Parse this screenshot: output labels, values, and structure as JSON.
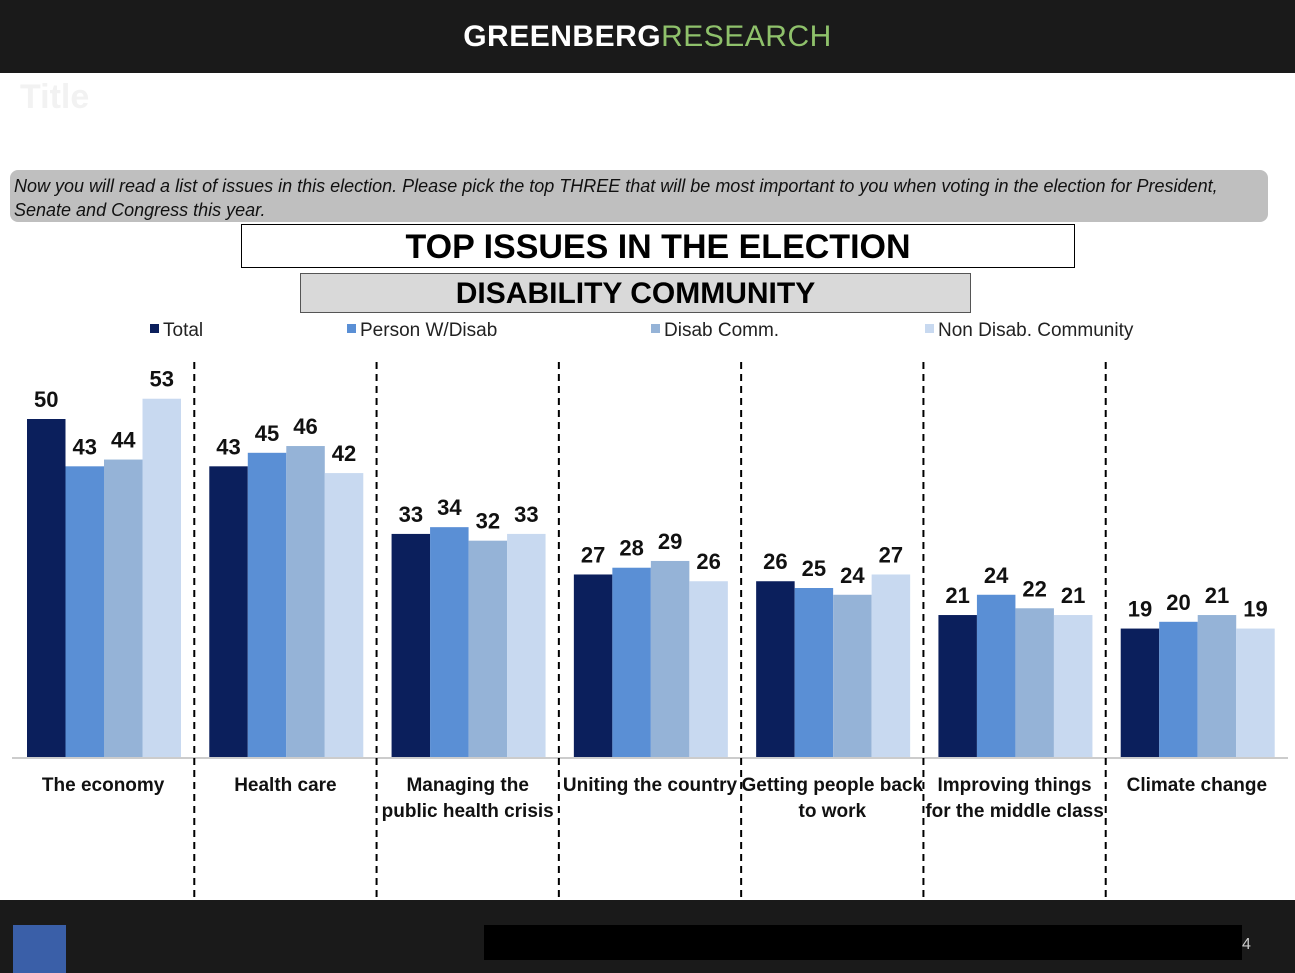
{
  "header": {
    "brand_bold": "GREENBERG",
    "brand_light": "RESEARCH"
  },
  "slide_title": "Title",
  "question": "Now you will read a list of issues in this election. Please pick the top THREE that will be most important to you when voting in the election for President, Senate and Congress this year.",
  "page_number": "4",
  "chart_data": {
    "type": "bar",
    "title": "TOP ISSUES IN THE ELECTION",
    "subtitle": "DISABILITY COMMUNITY",
    "categories": [
      "The economy",
      "Health care",
      "Managing the public health crisis",
      "Uniting the country",
      "Getting people back to work",
      "Improving things for the middle class",
      "Climate change"
    ],
    "series": [
      {
        "name": "Total",
        "color": "#0b1f5c",
        "values": [
          50,
          43,
          33,
          27,
          26,
          21,
          19
        ]
      },
      {
        "name": "Person W/Disab",
        "color": "#5a8fd5",
        "values": [
          43,
          45,
          34,
          28,
          25,
          24,
          20
        ]
      },
      {
        "name": "Disab Comm.",
        "color": "#95b3d7",
        "values": [
          44,
          46,
          32,
          29,
          24,
          22,
          21
        ]
      },
      {
        "name": "Non Disab. Community",
        "color": "#c8d9f0",
        "values": [
          53,
          42,
          33,
          26,
          27,
          21,
          19
        ]
      }
    ]
  }
}
